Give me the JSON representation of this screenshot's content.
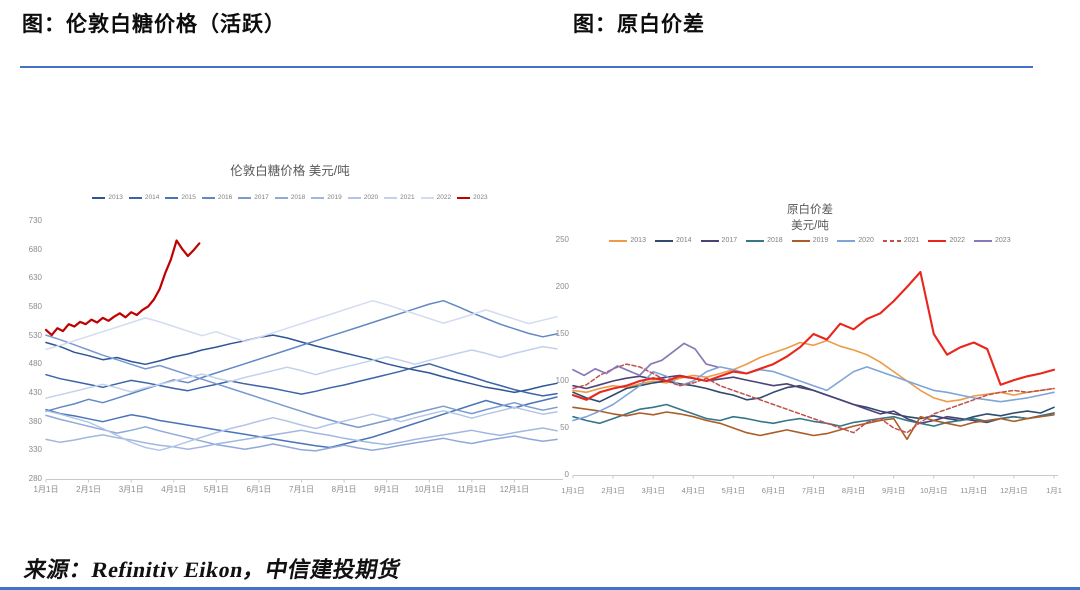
{
  "page": {
    "left_title": "图：伦敦白糖价格（活跃）",
    "right_title": "图：原白价差",
    "source": "来源：Refinitiv Eikon，中信建投期货",
    "rule_color": "#4472C4"
  },
  "chart_data": [
    {
      "type": "line",
      "name": "london-white-sugar-price",
      "title": "伦敦白糖价格 美元/吨",
      "ylabel": "美元/吨",
      "ylim": [
        280,
        730
      ],
      "yticks": [
        730,
        680,
        630,
        580,
        530,
        480,
        430,
        380,
        330,
        280
      ],
      "xticks": [
        "1月1日",
        "2月1日",
        "3月1日",
        "4月1日",
        "5月1日",
        "6月1日",
        "7月1日",
        "8月1日",
        "9月1日",
        "10月1日",
        "11月1日",
        "12月1日"
      ],
      "grid": false,
      "legend_position": "top",
      "axis_color": "#c9c9c9",
      "tick_label_color": "#8c8c8c",
      "series": [
        {
          "name": "2013",
          "color": "#2E5596",
          "dash": false,
          "width": 1.5,
          "span": 1,
          "values": [
            518,
            511,
            501,
            495,
            488,
            492,
            485,
            480,
            486,
            493,
            498,
            505,
            510,
            516,
            521,
            527,
            531,
            526,
            519,
            512,
            506,
            500,
            494,
            488,
            481,
            475,
            470,
            465,
            458,
            452,
            446,
            440,
            436,
            431,
            436,
            442,
            447
          ]
        },
        {
          "name": "2014",
          "color": "#3B64A9",
          "dash": false,
          "width": 1.5,
          "span": 1,
          "values": [
            462,
            455,
            450,
            445,
            440,
            446,
            452,
            448,
            443,
            438,
            434,
            440,
            445,
            451,
            446,
            442,
            438,
            433,
            428,
            433,
            439,
            444,
            450,
            456,
            462,
            468,
            475,
            481,
            473,
            465,
            458,
            450,
            443,
            436,
            430,
            425,
            429
          ]
        },
        {
          "name": "2015",
          "color": "#4A74B8",
          "dash": false,
          "width": 1.5,
          "span": 1,
          "values": [
            401,
            394,
            390,
            385,
            380,
            386,
            392,
            388,
            382,
            378,
            374,
            370,
            366,
            362,
            358,
            354,
            350,
            346,
            342,
            338,
            335,
            341,
            347,
            353,
            361,
            369,
            377,
            385,
            393,
            401,
            409,
            417,
            410,
            404,
            411,
            417,
            423
          ]
        },
        {
          "name": "2016",
          "color": "#6287C4",
          "dash": false,
          "width": 1.5,
          "span": 1,
          "values": [
            398,
            405,
            411,
            419,
            413,
            421,
            429,
            437,
            445,
            453,
            448,
            457,
            465,
            473,
            481,
            489,
            497,
            505,
            513,
            521,
            529,
            537,
            545,
            553,
            561,
            569,
            577,
            585,
            591,
            581,
            570,
            560,
            550,
            542,
            534,
            528,
            533
          ]
        },
        {
          "name": "2017",
          "color": "#7A9AD0",
          "dash": false,
          "width": 1.5,
          "span": 1,
          "values": [
            531,
            523,
            514,
            505,
            496,
            488,
            480,
            472,
            478,
            470,
            462,
            454,
            446,
            438,
            430,
            422,
            414,
            406,
            398,
            390,
            383,
            376,
            370,
            376,
            382,
            388,
            395,
            401,
            407,
            400,
            394,
            401,
            407,
            413,
            406,
            400,
            405
          ]
        },
        {
          "name": "2018",
          "color": "#8FA9D8",
          "dash": false,
          "width": 1.5,
          "span": 1,
          "values": [
            391,
            384,
            378,
            372,
            366,
            360,
            365,
            371,
            364,
            358,
            352,
            346,
            340,
            336,
            332,
            336,
            341,
            336,
            331,
            329,
            334,
            339,
            334,
            330,
            334,
            339,
            343,
            347,
            351,
            346,
            342,
            347,
            351,
            355,
            350,
            346,
            349
          ]
        },
        {
          "name": "2019",
          "color": "#A2B7DF",
          "dash": false,
          "width": 1.5,
          "span": 1,
          "values": [
            349,
            344,
            348,
            353,
            357,
            352,
            348,
            343,
            339,
            336,
            332,
            336,
            341,
            345,
            349,
            353,
            357,
            361,
            365,
            360,
            356,
            351,
            347,
            343,
            340,
            344,
            349,
            353,
            357,
            361,
            365,
            360,
            356,
            361,
            365,
            369,
            364
          ]
        },
        {
          "name": "2020",
          "color": "#B3C5E7",
          "dash": false,
          "width": 1.5,
          "span": 1,
          "values": [
            399,
            393,
            386,
            379,
            368,
            356,
            344,
            335,
            330,
            337,
            345,
            353,
            361,
            368,
            374,
            381,
            387,
            381,
            374,
            368,
            375,
            381,
            387,
            393,
            387,
            380,
            387,
            393,
            399,
            393,
            386,
            393,
            399,
            405,
            399,
            393,
            397
          ]
        },
        {
          "name": "2021",
          "color": "#C2D1EC",
          "dash": false,
          "width": 1.5,
          "span": 1,
          "values": [
            421,
            427,
            433,
            439,
            445,
            439,
            432,
            439,
            445,
            451,
            457,
            463,
            456,
            450,
            457,
            463,
            469,
            475,
            469,
            462,
            469,
            475,
            481,
            487,
            493,
            487,
            480,
            487,
            493,
            499,
            505,
            499,
            492,
            499,
            505,
            511,
            507
          ]
        },
        {
          "name": "2022",
          "color": "#D3DCF1",
          "dash": false,
          "width": 1.5,
          "span": 1,
          "values": [
            506,
            513,
            521,
            529,
            537,
            545,
            553,
            561,
            554,
            546,
            538,
            530,
            537,
            528,
            520,
            527,
            535,
            543,
            551,
            559,
            567,
            575,
            583,
            591,
            584,
            576,
            568,
            560,
            552,
            559,
            567,
            575,
            567,
            559,
            551,
            557,
            563
          ]
        },
        {
          "name": "2023",
          "color": "#C00000",
          "dash": false,
          "width": 2.2,
          "span": 0.3,
          "values": [
            540,
            531,
            543,
            538,
            550,
            546,
            554,
            550,
            558,
            553,
            561,
            556,
            563,
            569,
            562,
            571,
            566,
            575,
            581,
            593,
            611,
            639,
            663,
            696,
            681,
            669,
            679,
            691
          ]
        }
      ]
    },
    {
      "type": "line",
      "name": "raw-white-spread",
      "title": "原白价差",
      "subtitle": "美元/吨",
      "ylim": [
        0,
        250
      ],
      "yticks": [
        250,
        200,
        150,
        100,
        50,
        0
      ],
      "xticks": [
        "1月1日",
        "2月1日",
        "3月1日",
        "4月1日",
        "5月1日",
        "6月1日",
        "7月1日",
        "8月1日",
        "9月1日",
        "10月1日",
        "11月1日",
        "12月1日",
        "1月1"
      ],
      "grid": false,
      "legend_position": "top",
      "axis_color": "#c9c9c9",
      "tick_label_color": "#8c8c8c",
      "series": [
        {
          "name": "2013",
          "color": "#ED9B49",
          "dash": false,
          "width": 1.6,
          "span": 1,
          "values": [
            90,
            88,
            92,
            95,
            93,
            97,
            100,
            98,
            103,
            106,
            104,
            108,
            112,
            118,
            125,
            130,
            135,
            141,
            138,
            143,
            137,
            133,
            128,
            120,
            110,
            100,
            90,
            82,
            78,
            80,
            84,
            86,
            88,
            85,
            88,
            90,
            92
          ]
        },
        {
          "name": "2014",
          "color": "#2F4B6E",
          "dash": false,
          "width": 1.6,
          "span": 1,
          "values": [
            88,
            82,
            78,
            85,
            92,
            95,
            98,
            100,
            97,
            95,
            92,
            88,
            85,
            80,
            82,
            88,
            93,
            95,
            90,
            85,
            80,
            75,
            72,
            68,
            65,
            62,
            60,
            63,
            60,
            58,
            62,
            65,
            63,
            66,
            68,
            66,
            72
          ]
        },
        {
          "name": "2017",
          "color": "#4D4276",
          "dash": false,
          "width": 1.6,
          "span": 1,
          "values": [
            95,
            92,
            96,
            100,
            103,
            105,
            102,
            104,
            106,
            103,
            100,
            102,
            104,
            101,
            98,
            95,
            97,
            93,
            90,
            85,
            80,
            75,
            70,
            65,
            68,
            60,
            55,
            58,
            62,
            60,
            58,
            56,
            60,
            62,
            60,
            63,
            66
          ]
        },
        {
          "name": "2018",
          "color": "#357687",
          "dash": false,
          "width": 1.6,
          "span": 1,
          "values": [
            62,
            58,
            55,
            60,
            65,
            70,
            72,
            75,
            70,
            65,
            60,
            58,
            62,
            60,
            57,
            55,
            58,
            60,
            57,
            55,
            52,
            56,
            58,
            60,
            62,
            58,
            55,
            52,
            56,
            58,
            60,
            57,
            60,
            62,
            60,
            63,
            66
          ]
        },
        {
          "name": "2019",
          "color": "#AC5D27",
          "dash": false,
          "width": 1.6,
          "span": 1,
          "values": [
            72,
            70,
            68,
            65,
            63,
            66,
            64,
            67,
            65,
            62,
            58,
            55,
            50,
            45,
            42,
            45,
            48,
            45,
            42,
            44,
            48,
            52,
            55,
            58,
            60,
            38,
            62,
            58,
            55,
            52,
            56,
            58,
            60,
            57,
            60,
            62,
            64
          ]
        },
        {
          "name": "2020",
          "color": "#7FA5D8",
          "dash": false,
          "width": 1.6,
          "span": 1,
          "values": [
            58,
            62,
            68,
            75,
            85,
            95,
            110,
            105,
            95,
            100,
            110,
            115,
            112,
            108,
            112,
            110,
            105,
            100,
            95,
            90,
            100,
            110,
            115,
            110,
            105,
            100,
            95,
            90,
            88,
            85,
            82,
            80,
            78,
            80,
            82,
            85,
            88
          ]
        },
        {
          "name": "2021",
          "color": "#C0504D",
          "dash": true,
          "width": 1.5,
          "span": 1,
          "values": [
            92,
            96,
            106,
            113,
            118,
            115,
            108,
            100,
            95,
            98,
            103,
            95,
            90,
            85,
            80,
            75,
            70,
            65,
            60,
            55,
            50,
            45,
            56,
            60,
            50,
            45,
            56,
            65,
            70,
            75,
            80,
            85,
            88,
            90,
            88,
            90,
            92
          ]
        },
        {
          "name": "2022",
          "color": "#E9261C",
          "dash": false,
          "width": 2.1,
          "span": 1,
          "values": [
            85,
            80,
            88,
            92,
            95,
            100,
            103,
            100,
            105,
            103,
            100,
            105,
            110,
            108,
            113,
            118,
            126,
            136,
            150,
            144,
            161,
            155,
            166,
            172,
            185,
            200,
            216,
            150,
            128,
            136,
            141,
            134,
            96,
            101,
            105,
            108,
            112
          ]
        },
        {
          "name": "2023",
          "color": "#8979B6",
          "dash": false,
          "width": 1.7,
          "span": 0.3,
          "values": [
            112,
            106,
            113,
            108,
            116,
            111,
            106,
            118,
            122,
            131,
            140,
            134,
            118,
            115
          ]
        }
      ]
    }
  ]
}
